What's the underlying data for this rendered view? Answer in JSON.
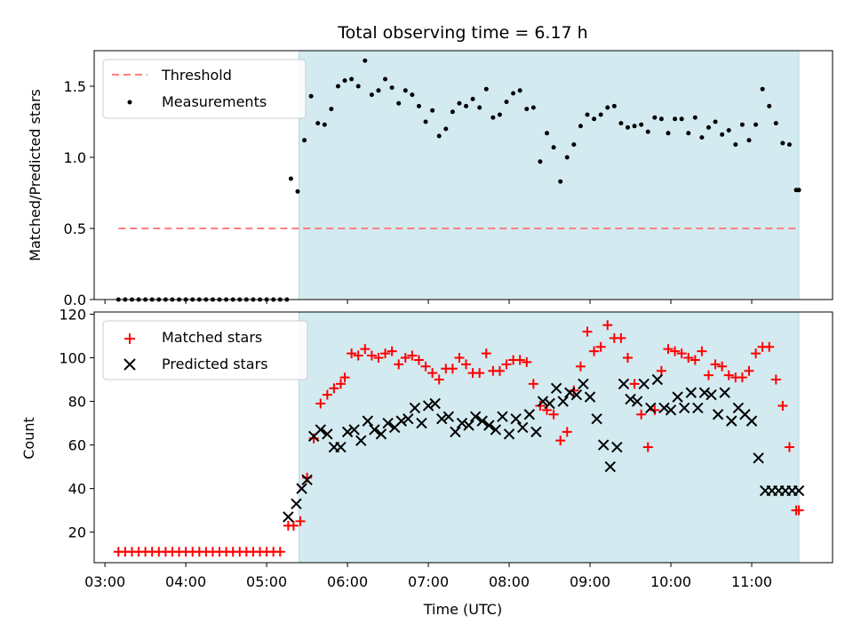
{
  "chart_data": [
    {
      "type": "scatter",
      "title": "Total observing time = 6.17 h",
      "xlabel": "",
      "ylabel": "Matched/Predicted stars",
      "ylim": [
        0,
        1.75
      ],
      "yticks": [
        "0.0",
        "0.5",
        "1.0",
        "1.5"
      ],
      "xlim": [
        "02:52",
        "12:00"
      ],
      "grid": false,
      "legend_position": "top-left",
      "shaded_interval": {
        "start": "05:24",
        "end": "11:35",
        "color": "#d3eaf0"
      },
      "threshold": {
        "name": "Threshold",
        "y": 0.5,
        "x_start": "03:10",
        "x_end": "11:35",
        "color": "#ff7f7f"
      },
      "series": [
        {
          "name": "Measurements",
          "color": "#000000",
          "x": [
            "03:10",
            "03:15",
            "03:20",
            "03:25",
            "03:30",
            "03:35",
            "03:40",
            "03:45",
            "03:50",
            "03:55",
            "04:00",
            "04:05",
            "04:10",
            "04:15",
            "04:20",
            "04:25",
            "04:30",
            "04:35",
            "04:40",
            "04:45",
            "04:50",
            "04:55",
            "05:00",
            "05:05",
            "05:10",
            "05:15",
            "05:18",
            "05:23",
            "05:28",
            "05:33",
            "05:38",
            "05:43",
            "05:48",
            "05:53",
            "05:58",
            "06:03",
            "06:08",
            "06:13",
            "06:18",
            "06:23",
            "06:28",
            "06:33",
            "06:38",
            "06:43",
            "06:48",
            "06:53",
            "06:58",
            "07:03",
            "07:08",
            "07:13",
            "07:18",
            "07:23",
            "07:28",
            "07:33",
            "07:38",
            "07:43",
            "07:48",
            "07:53",
            "07:58",
            "08:03",
            "08:08",
            "08:13",
            "08:18",
            "08:23",
            "08:28",
            "08:33",
            "08:38",
            "08:43",
            "08:48",
            "08:53",
            "08:58",
            "09:03",
            "09:08",
            "09:13",
            "09:18",
            "09:23",
            "09:28",
            "09:33",
            "09:38",
            "09:43",
            "09:48",
            "09:53",
            "09:58",
            "10:03",
            "10:08",
            "10:13",
            "10:18",
            "10:23",
            "10:28",
            "10:33",
            "10:38",
            "10:43",
            "10:48",
            "10:53",
            "10:58",
            "11:03",
            "11:08",
            "11:13",
            "11:18",
            "11:23",
            "11:28",
            "11:33",
            "11:35"
          ],
          "y": [
            0,
            0,
            0,
            0,
            0,
            0,
            0,
            0,
            0,
            0,
            0,
            0,
            0,
            0,
            0,
            0,
            0,
            0,
            0,
            0,
            0,
            0,
            0,
            0,
            0,
            0,
            0.85,
            0.76,
            1.12,
            1.43,
            1.24,
            1.23,
            1.34,
            1.5,
            1.54,
            1.55,
            1.5,
            1.68,
            1.44,
            1.47,
            1.55,
            1.49,
            1.38,
            1.47,
            1.44,
            1.36,
            1.25,
            1.33,
            1.15,
            1.2,
            1.32,
            1.38,
            1.36,
            1.41,
            1.35,
            1.48,
            1.28,
            1.3,
            1.39,
            1.45,
            1.47,
            1.34,
            1.35,
            0.97,
            1.17,
            1.07,
            0.83,
            1.0,
            1.09,
            1.22,
            1.3,
            1.27,
            1.3,
            1.35,
            1.36,
            1.24,
            1.21,
            1.22,
            1.23,
            1.18,
            1.28,
            1.27,
            1.17,
            1.27,
            1.27,
            1.17,
            1.28,
            1.14,
            1.21,
            1.25,
            1.16,
            1.19,
            1.09,
            1.23,
            1.12,
            1.23,
            1.48,
            1.36,
            1.24,
            1.1,
            1.09,
            0.77,
            0.77
          ]
        }
      ]
    },
    {
      "type": "scatter",
      "title": "",
      "xlabel": "Time (UTC)",
      "ylabel": "Count",
      "ylim": [
        6,
        121
      ],
      "yticks": [
        "20",
        "40",
        "60",
        "80",
        "100",
        "120"
      ],
      "xlim": [
        "02:52",
        "12:00"
      ],
      "xticks": [
        "03:00",
        "04:00",
        "05:00",
        "06:00",
        "07:00",
        "08:00",
        "09:00",
        "10:00",
        "11:00"
      ],
      "grid": false,
      "legend_position": "top-left",
      "shaded_interval": {
        "start": "05:24",
        "end": "11:35",
        "color": "#d3eaf0"
      },
      "series": [
        {
          "name": "Matched stars",
          "marker": "plus",
          "color": "#ff0000",
          "x": [
            "03:10",
            "03:15",
            "03:20",
            "03:25",
            "03:30",
            "03:35",
            "03:40",
            "03:45",
            "03:50",
            "03:55",
            "04:00",
            "04:05",
            "04:10",
            "04:15",
            "04:20",
            "04:25",
            "04:30",
            "04:35",
            "04:40",
            "04:45",
            "04:50",
            "04:55",
            "05:00",
            "05:05",
            "05:10",
            "05:16",
            "05:20",
            "05:25",
            "05:30",
            "05:35",
            "05:40",
            "05:45",
            "05:50",
            "05:55",
            "05:58",
            "06:03",
            "06:08",
            "06:13",
            "06:18",
            "06:23",
            "06:28",
            "06:33",
            "06:38",
            "06:43",
            "06:48",
            "06:53",
            "06:58",
            "07:03",
            "07:08",
            "07:13",
            "07:18",
            "07:23",
            "07:28",
            "07:33",
            "07:38",
            "07:43",
            "07:48",
            "07:53",
            "07:58",
            "08:03",
            "08:08",
            "08:13",
            "08:18",
            "08:23",
            "08:28",
            "08:33",
            "08:38",
            "08:43",
            "08:48",
            "08:53",
            "08:58",
            "09:03",
            "09:08",
            "09:13",
            "09:18",
            "09:23",
            "09:28",
            "09:33",
            "09:38",
            "09:43",
            "09:48",
            "09:53",
            "09:58",
            "10:03",
            "10:08",
            "10:13",
            "10:18",
            "10:23",
            "10:28",
            "10:33",
            "10:38",
            "10:43",
            "10:48",
            "10:53",
            "10:58",
            "11:03",
            "11:08",
            "11:13",
            "11:18",
            "11:23",
            "11:28",
            "11:33",
            "11:35"
          ],
          "y": [
            11,
            11,
            11,
            11,
            11,
            11,
            11,
            11,
            11,
            11,
            11,
            11,
            11,
            11,
            11,
            11,
            11,
            11,
            11,
            11,
            11,
            11,
            11,
            11,
            11,
            23,
            23,
            25,
            45,
            63,
            79,
            83,
            86,
            88,
            91,
            102,
            101,
            104,
            101,
            100,
            102,
            103,
            97,
            100,
            101,
            99,
            96,
            93,
            90,
            95,
            95,
            100,
            97,
            93,
            93,
            102,
            94,
            94,
            97,
            99,
            99,
            98,
            88,
            78,
            76,
            74,
            62,
            66,
            85,
            96,
            112,
            103,
            105,
            115,
            109,
            109,
            100,
            88,
            74,
            59,
            76,
            94,
            104,
            103,
            102,
            100,
            99,
            103,
            92,
            97,
            96,
            92,
            91,
            91,
            94,
            102,
            105,
            105,
            90,
            78,
            59,
            30,
            30
          ]
        },
        {
          "name": "Predicted stars",
          "marker": "x",
          "color": "#000000",
          "x": [
            "05:16",
            "05:22",
            "05:26",
            "05:30",
            "05:35",
            "05:40",
            "05:45",
            "05:50",
            "05:55",
            "06:00",
            "06:05",
            "06:10",
            "06:15",
            "06:20",
            "06:25",
            "06:30",
            "06:35",
            "06:40",
            "06:45",
            "06:50",
            "06:55",
            "07:00",
            "07:05",
            "07:10",
            "07:15",
            "07:20",
            "07:25",
            "07:30",
            "07:35",
            "07:40",
            "07:45",
            "07:50",
            "07:55",
            "08:00",
            "08:05",
            "08:10",
            "08:15",
            "08:20",
            "08:25",
            "08:30",
            "08:35",
            "08:40",
            "08:45",
            "08:50",
            "08:55",
            "09:00",
            "09:05",
            "09:10",
            "09:15",
            "09:20",
            "09:25",
            "09:30",
            "09:35",
            "09:40",
            "09:45",
            "09:50",
            "09:55",
            "10:00",
            "10:05",
            "10:10",
            "10:15",
            "10:20",
            "10:25",
            "10:30",
            "10:35",
            "10:40",
            "10:45",
            "10:50",
            "10:55",
            "11:00",
            "11:05",
            "11:10",
            "11:15",
            "11:20",
            "11:25",
            "11:30",
            "11:35"
          ],
          "y": [
            27,
            33,
            40,
            44,
            64,
            67,
            65,
            59,
            59,
            66,
            67,
            62,
            71,
            67,
            65,
            70,
            68,
            71,
            72,
            77,
            70,
            78,
            79,
            72,
            73,
            66,
            70,
            69,
            73,
            71,
            69,
            67,
            73,
            65,
            72,
            68,
            74,
            66,
            80,
            79,
            86,
            80,
            84,
            83,
            88,
            82,
            72,
            60,
            50,
            59,
            88,
            81,
            80,
            88,
            77,
            90,
            77,
            76,
            82,
            77,
            84,
            77,
            84,
            83,
            74,
            84,
            71,
            77,
            74,
            71,
            54,
            39,
            39,
            39,
            39,
            39,
            39
          ]
        }
      ]
    }
  ]
}
